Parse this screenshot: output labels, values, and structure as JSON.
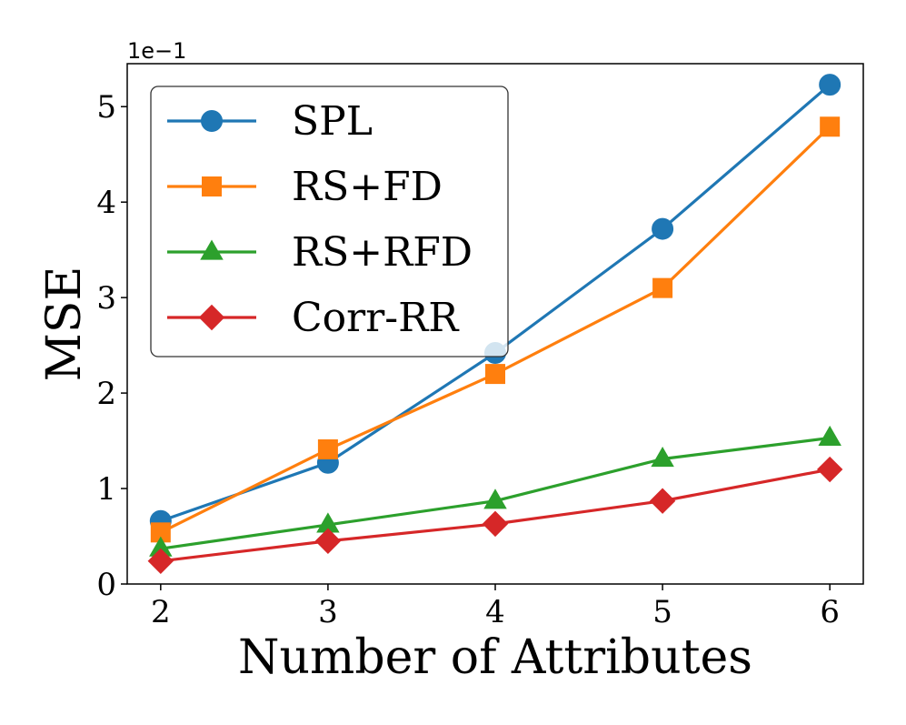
{
  "chart_data": {
    "type": "line",
    "x": [
      2,
      3,
      4,
      5,
      6
    ],
    "xticks": [
      "2",
      "3",
      "4",
      "5",
      "6"
    ],
    "yticks": [
      "0",
      "1",
      "2",
      "3",
      "4",
      "5"
    ],
    "xlim": [
      1.8,
      6.2
    ],
    "ylim": [
      0,
      5.45
    ],
    "xlabel": "Number of Attributes",
    "ylabel": "MSE",
    "y_multiplier": "1e−1",
    "legend_position": "top-left",
    "series": [
      {
        "name": "SPL",
        "marker": "circle",
        "color": "#1f77b4",
        "values": [
          0.66,
          1.27,
          2.42,
          3.72,
          5.23
        ]
      },
      {
        "name": "RS+FD",
        "marker": "square",
        "color": "#ff7f0e",
        "values": [
          0.54,
          1.41,
          2.2,
          3.1,
          4.79
        ]
      },
      {
        "name": "RS+RFD",
        "marker": "triangle",
        "color": "#2ca02c",
        "values": [
          0.37,
          0.62,
          0.87,
          1.31,
          1.53
        ]
      },
      {
        "name": "Corr-RR",
        "marker": "diamond",
        "color": "#d62728",
        "values": [
          0.24,
          0.45,
          0.63,
          0.87,
          1.2
        ]
      }
    ]
  }
}
